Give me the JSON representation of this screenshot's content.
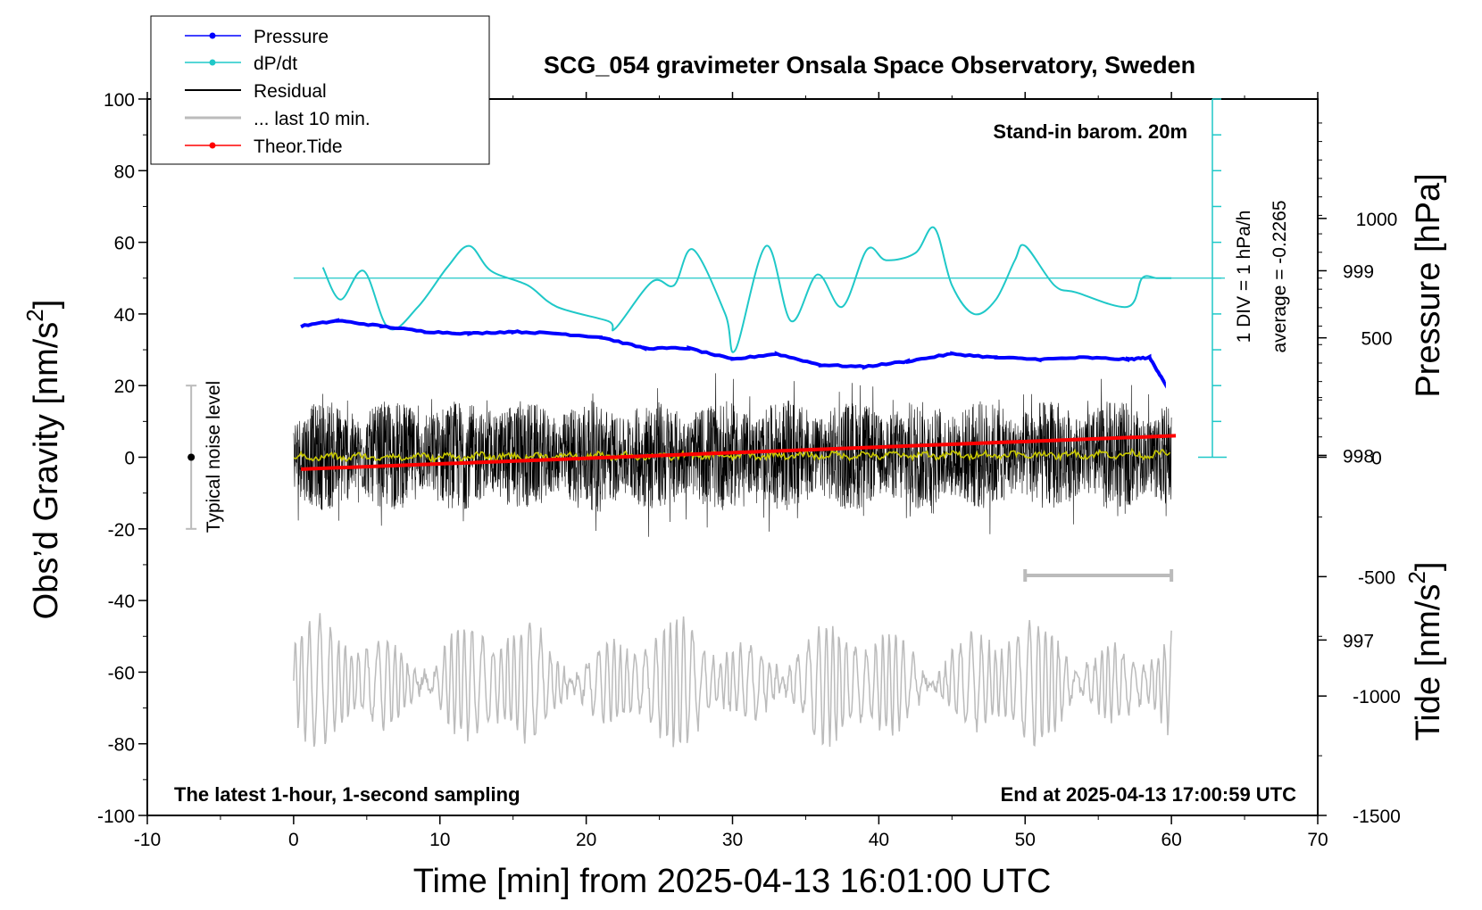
{
  "chart_data": {
    "type": "line",
    "title": "SCG_054 gravimeter Onsala Space Observatory, Sweden",
    "xlabel": "Time [min] from 2025-04-13 16:01:00 UTC",
    "ylabel_left": "Obs’d Gravity [nm/s",
    "ylabel_left_sup": "2",
    "ylabel_left_close": "]",
    "ylabel_right_top": "Pressure [hPa]",
    "ylabel_right_bottom": "Tide [nm/s",
    "ylabel_right_bottom_sup": "2",
    "ylabel_right_bottom_close": "]",
    "xlim": [
      -10,
      70
    ],
    "ylim_left": [
      -100,
      100
    ],
    "pressure_ylim": [
      996.05,
      999.93
    ],
    "tide_ylim": [
      -1500,
      1500
    ],
    "x_ticks": [
      "-10",
      "0",
      "10",
      "20",
      "30",
      "40",
      "50",
      "60",
      "70"
    ],
    "y_left_ticks": [
      "100",
      "80",
      "60",
      "40",
      "20",
      "0",
      "-20",
      "-40",
      "-60",
      "-80",
      "-100"
    ],
    "pressure_ticks": [
      "999",
      "998",
      "997"
    ],
    "tide_ticks": [
      "1000",
      "500",
      "0",
      "-500",
      "-1000",
      "-1500"
    ],
    "annotations": {
      "stand_in": "Stand-in barom. 20m",
      "div": "1 DIV = 1 hPa/h",
      "average": "average = -0.2265",
      "noise": "Typical noise level",
      "latest": "The latest 1-hour, 1-second sampling",
      "end": "End at 2025-04-13 17:00:59 UTC"
    },
    "legend_placement": "top-left",
    "grid": false,
    "series": [
      {
        "name": "Pressure",
        "color": "#0000ff",
        "axis": "pressure",
        "x": [
          0.5,
          3,
          6,
          9,
          12,
          15,
          18,
          21,
          24,
          27,
          30,
          33,
          36,
          39,
          42,
          45,
          48,
          51,
          54,
          57,
          58.5,
          59.5
        ],
        "values": [
          998.7,
          998.73,
          998.7,
          998.67,
          998.66,
          998.67,
          998.66,
          998.64,
          998.58,
          998.58,
          998.52,
          998.55,
          998.49,
          998.48,
          998.51,
          998.55,
          998.53,
          998.52,
          998.53,
          998.52,
          998.53,
          998.4
        ]
      },
      {
        "name": "dP/dt",
        "color": "#1fc8c8",
        "axis": "dpdt",
        "x": [
          2,
          3.2,
          4.8,
          6.5,
          8.5,
          10.5,
          12,
          13.5,
          16,
          18,
          21.5,
          22,
          24.5,
          26,
          27.3,
          29.5,
          30.2,
          32.3,
          34,
          35.8,
          37.5,
          39.2,
          40.5,
          42.5,
          43.8,
          45,
          46.5,
          48,
          49.3,
          50,
          52,
          53.5,
          57,
          58,
          59,
          60
        ],
        "values": [
          0.3,
          -0.6,
          0.2,
          -1.4,
          -0.8,
          0.3,
          0.9,
          0.2,
          -0.2,
          -0.8,
          -1.2,
          -1.4,
          -0.1,
          -0.2,
          0.8,
          -1.0,
          -2.0,
          0.9,
          -1.2,
          0.1,
          -0.8,
          0.8,
          0.5,
          0.7,
          1.4,
          -0.2,
          -1.0,
          -0.6,
          0.5,
          0.9,
          -0.2,
          -0.4,
          -0.8,
          0.0,
          0.0,
          0.0
        ]
      },
      {
        "name": "Residual",
        "color": "#000000",
        "axis": "left",
        "x_range": [
          0,
          60
        ],
        "amplitude": 22
      },
      {
        "name": "... last 10 min.",
        "color": "#bbbbbb",
        "axis": "left",
        "x_range": [
          50,
          60
        ],
        "y": -33
      },
      {
        "name": "Theor.Tide",
        "color": "#ff0000",
        "axis": "tide",
        "x": [
          0.5,
          60.3
        ],
        "values": [
          -50,
          90
        ]
      }
    ],
    "smoothed_residual": {
      "color": "#c8c800",
      "level": 0.8
    },
    "noise_bar": {
      "x": -7,
      "y_min": -20,
      "y_max": 20,
      "center": 0
    },
    "residual_grey_copy": {
      "x_range": [
        0,
        60
      ],
      "baseline": -63,
      "amplitude": 18
    },
    "dpdt_baseline": 50,
    "dpdt_scale_ticks_hpa_per_h": [
      -5,
      -4,
      -3,
      -2,
      -1,
      0,
      1,
      2,
      3,
      4,
      5
    ]
  }
}
